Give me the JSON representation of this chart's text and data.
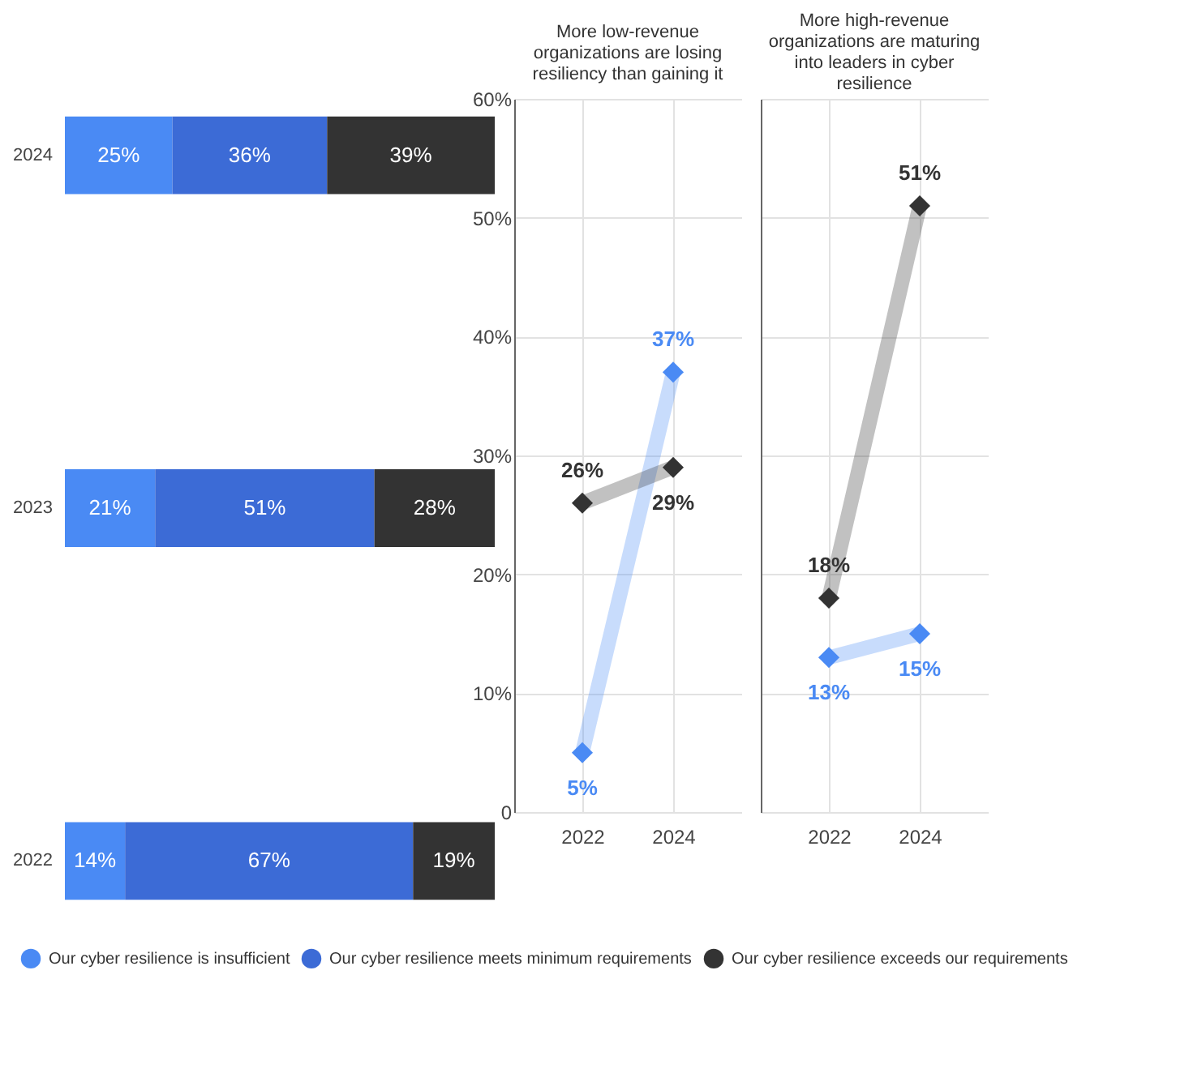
{
  "chart_data": [
    {
      "type": "bar",
      "orientation": "horizontal",
      "stacked": true,
      "categories": [
        "2024",
        "2023",
        "2022"
      ],
      "tick_labels": "y",
      "legend": "bottom",
      "series": [
        {
          "name": "Our cyber resilience is insufficient",
          "color": "#4a8af4",
          "values": [
            25,
            21,
            14
          ],
          "value_labels": [
            "25%",
            "21%",
            "14%"
          ]
        },
        {
          "name": "Our cyber resilience meets minimum requirements",
          "color": "#3c6bd6",
          "values": [
            36,
            51,
            67
          ],
          "value_labels": [
            "36%",
            "51%",
            "67%"
          ]
        },
        {
          "name": "Our cyber resilience exceeds our requirements",
          "color": "#333333",
          "values": [
            39,
            28,
            19
          ],
          "value_labels": [
            "39%",
            "28%",
            "19%"
          ]
        }
      ]
    },
    {
      "type": "line",
      "title": "More low-revenue organizations are losing resiliency than gaining it",
      "categories": [
        "2022",
        "2024"
      ],
      "marker": "diamond",
      "grid": true,
      "ylim": [
        0,
        60
      ],
      "yticks": [
        {
          "value": 0,
          "label": "0"
        },
        {
          "value": 10,
          "label": "10%"
        },
        {
          "value": 20,
          "label": "20%"
        },
        {
          "value": 30,
          "label": "30%"
        },
        {
          "value": 40,
          "label": "40%"
        },
        {
          "value": 50,
          "label": "50%"
        },
        {
          "value": 60,
          "label": "60%"
        }
      ],
      "series": [
        {
          "color": "#4a8af4",
          "values": [
            5,
            37
          ],
          "value_labels": [
            "5%",
            "37%"
          ]
        },
        {
          "color": "#333333",
          "values": [
            26,
            29
          ],
          "value_labels": [
            "26%",
            "29%"
          ]
        }
      ]
    },
    {
      "type": "line",
      "title": "More high-revenue organizations are maturing into leaders in cyber resilience",
      "categories": [
        "2022",
        "2024"
      ],
      "marker": "diamond",
      "grid": true,
      "tick_labels": "x",
      "ylim": [
        0,
        60
      ],
      "yticks": [
        {
          "value": 0,
          "label": null
        },
        {
          "value": 10,
          "label": null
        },
        {
          "value": 20,
          "label": null
        },
        {
          "value": 30,
          "label": null
        },
        {
          "value": 40,
          "label": null
        },
        {
          "value": 50,
          "label": null
        },
        {
          "value": 60,
          "label": null
        }
      ],
      "series": [
        {
          "color": "#4a8af4",
          "values": [
            13,
            15
          ],
          "value_labels": [
            "13%",
            "15%"
          ]
        },
        {
          "color": "#333333",
          "values": [
            18,
            51
          ],
          "value_labels": [
            "18%",
            "51%"
          ]
        }
      ]
    }
  ]
}
